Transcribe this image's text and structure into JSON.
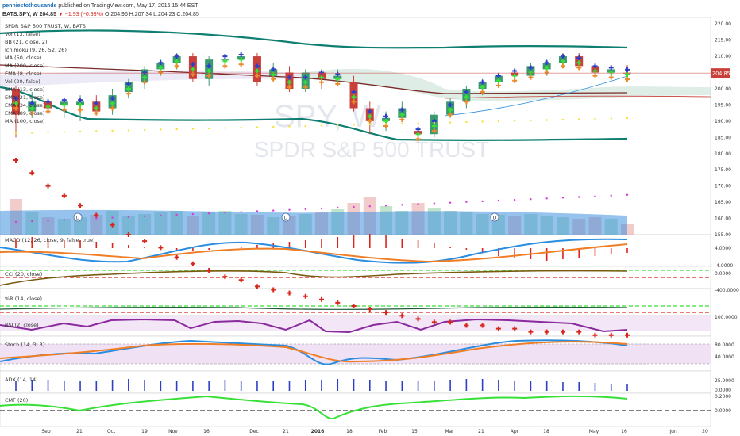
{
  "header": {
    "author": "penniestothousands",
    "published": " published on TradingView.com, May 17, 2016 15:44 EST",
    "symbol": "BATS:SPY, W",
    "last": "204.85",
    "change": "▼ −1.93 (−0.93%)",
    "ohlc": "O:204.96 H:207.34 L:204.23 C:204.85"
  },
  "price_pane": {
    "title": "SPDR S&P 500 TRUST, W, BATS",
    "indicators": [
      "Vol (13, false)",
      "BB (21, close, 2)",
      "Ichimoku (9, 26, 52, 26)",
      "MA (50, close)",
      "MA (200, close)",
      "EMA (8, close)",
      "Vol (20, false)",
      "EMA (13, close)",
      "EMA (21, close)",
      "EMA (34, close)",
      "EMA (89, close)",
      "MA (100, close)"
    ],
    "watermark_symbol": "SPY, W",
    "watermark_name": "SPDR S&P 500 TRUST",
    "dividend_label": "D",
    "last_price_tag": "204.85",
    "y_ticks": [
      "220.00",
      "215.00",
      "210.00",
      "205.00",
      "200.00",
      "195.00",
      "190.00",
      "185.00",
      "180.00",
      "175.00",
      "170.00",
      "165.00",
      "160.00",
      "155.00"
    ]
  },
  "macd_pane": {
    "title": "MACD (12, 26, close, 9, false, true)",
    "ticks": [
      "4.0000",
      "-4.0000"
    ]
  },
  "cci_pane": {
    "title": "CCI (20, close)",
    "ticks": [
      "0.0000"
    ]
  },
  "wr_pane": {
    "title": "%R (14, close)",
    "ticks": [
      "-400.0000"
    ]
  },
  "rsi_pane": {
    "title": "RSI (2, close)",
    "ticks": [
      "100.0000"
    ]
  },
  "stoch_pane": {
    "title": "Stoch (14, 3, 3)",
    "ticks": [
      "80.0000",
      "40.0000"
    ]
  },
  "adx_pane": {
    "title": "ADX (14, 14)",
    "ticks": [
      "25.0000",
      "0.0000"
    ]
  },
  "cmf_pane": {
    "title": "CMF (20)",
    "ticks": [
      "0.2000",
      "0.0000"
    ]
  },
  "x_axis": [
    "Sep",
    "21",
    "Oct",
    "19",
    "Nov",
    "16",
    "Dec",
    "21",
    "2016",
    "18",
    "Feb",
    "15",
    "Mar",
    "21",
    "Apr",
    "18",
    "May",
    "16",
    "Jun",
    "20"
  ],
  "colors": {
    "up": "#3a9a6e",
    "down": "#c9403a",
    "bb": "#0f7f72",
    "macd": "#2a8de0",
    "signal": "#f07e26",
    "rsi": "#8a2a9e",
    "adx": "#2e3ec9",
    "cmf": "#37e037"
  },
  "chart_data": {
    "type": "candlestick",
    "title": "SPDR S&P 500 TRUST, W, BATS",
    "interval": "W",
    "ylim": [
      155,
      222
    ],
    "candles": [
      {
        "o": 200,
        "h": 201,
        "l": 185,
        "c": 192
      },
      {
        "o": 193,
        "h": 199,
        "l": 191,
        "c": 196
      },
      {
        "o": 196,
        "h": 198,
        "l": 192,
        "c": 194
      },
      {
        "o": 195,
        "h": 197,
        "l": 191,
        "c": 196
      },
      {
        "o": 195,
        "h": 198,
        "l": 190,
        "c": 196
      },
      {
        "o": 196,
        "h": 198,
        "l": 192,
        "c": 193
      },
      {
        "o": 194,
        "h": 200,
        "l": 192,
        "c": 198
      },
      {
        "o": 199,
        "h": 203,
        "l": 197,
        "c": 202
      },
      {
        "o": 202,
        "h": 207,
        "l": 200,
        "c": 206
      },
      {
        "o": 206,
        "h": 209,
        "l": 204,
        "c": 208
      },
      {
        "o": 208,
        "h": 211,
        "l": 206,
        "c": 210
      },
      {
        "o": 210,
        "h": 211,
        "l": 202,
        "c": 203
      },
      {
        "o": 203,
        "h": 210,
        "l": 201,
        "c": 209
      },
      {
        "o": 209,
        "h": 210,
        "l": 207,
        "c": 209
      },
      {
        "o": 209,
        "h": 211,
        "l": 207,
        "c": 210
      },
      {
        "o": 210,
        "h": 211,
        "l": 201,
        "c": 202
      },
      {
        "o": 204,
        "h": 208,
        "l": 203,
        "c": 206
      },
      {
        "o": 205,
        "h": 207,
        "l": 199,
        "c": 200
      },
      {
        "o": 200,
        "h": 206,
        "l": 199,
        "c": 205
      },
      {
        "o": 205,
        "h": 206,
        "l": 200,
        "c": 203
      },
      {
        "o": 203,
        "h": 206,
        "l": 202,
        "c": 204
      },
      {
        "o": 202,
        "h": 204,
        "l": 193,
        "c": 194
      },
      {
        "o": 194,
        "h": 196,
        "l": 186,
        "c": 190
      },
      {
        "o": 190,
        "h": 193,
        "l": 187,
        "c": 191
      },
      {
        "o": 191,
        "h": 196,
        "l": 190,
        "c": 194
      },
      {
        "o": 187,
        "h": 189,
        "l": 181,
        "c": 186
      },
      {
        "o": 186,
        "h": 193,
        "l": 185,
        "c": 192
      },
      {
        "o": 192,
        "h": 197,
        "l": 191,
        "c": 196
      },
      {
        "o": 196,
        "h": 201,
        "l": 194,
        "c": 200
      },
      {
        "o": 200,
        "h": 203,
        "l": 198,
        "c": 202
      },
      {
        "o": 202,
        "h": 205,
        "l": 201,
        "c": 204
      },
      {
        "o": 205,
        "h": 206,
        "l": 202,
        "c": 204
      },
      {
        "o": 204,
        "h": 208,
        "l": 203,
        "c": 207
      },
      {
        "o": 206,
        "h": 209,
        "l": 204,
        "c": 208
      },
      {
        "o": 208,
        "h": 211,
        "l": 207,
        "c": 210
      },
      {
        "o": 210,
        "h": 211,
        "l": 206,
        "c": 207
      },
      {
        "o": 207,
        "h": 209,
        "l": 204,
        "c": 205
      },
      {
        "o": 205,
        "h": 207,
        "l": 204,
        "c": 206
      },
      {
        "o": 204.96,
        "h": 207.34,
        "l": 204.23,
        "c": 204.85
      }
    ]
  }
}
